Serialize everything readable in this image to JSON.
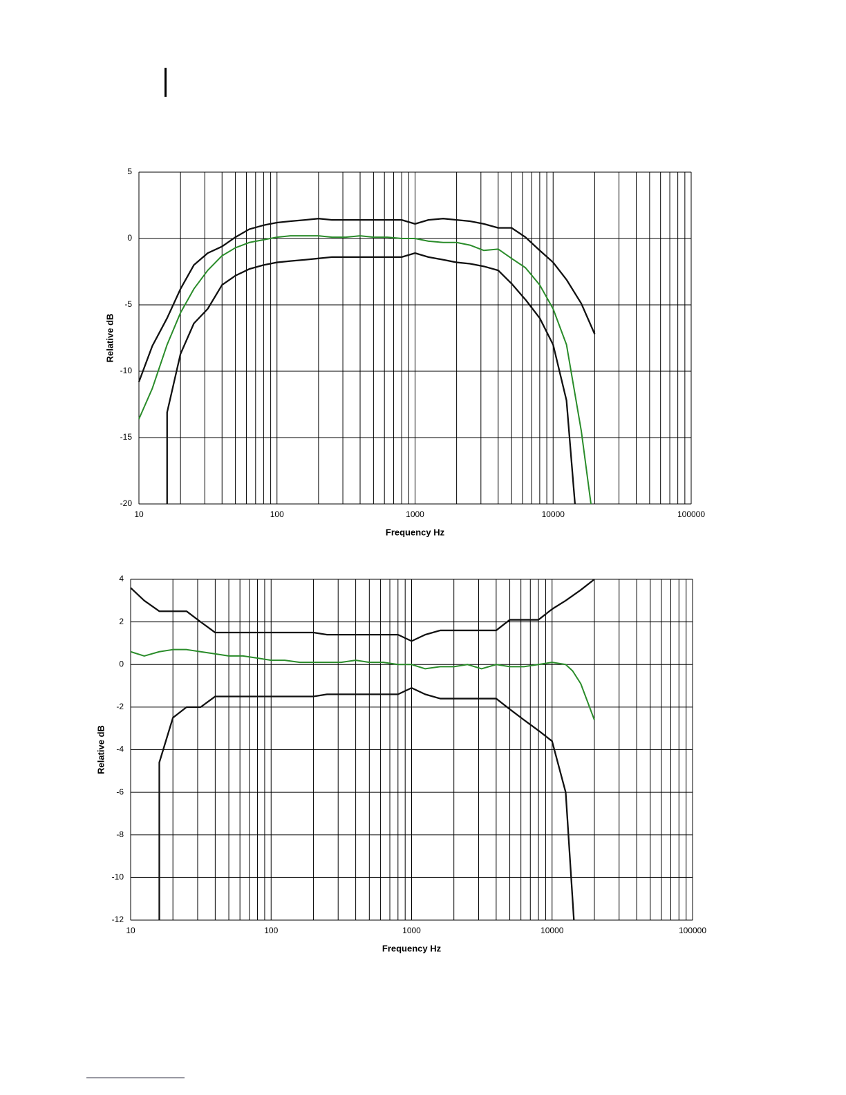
{
  "chart_data": [
    {
      "type": "line",
      "x_label": "Frequency Hz",
      "y_label": "Relative dB",
      "log_x": true,
      "grid": true,
      "xlim": [
        10,
        100000
      ],
      "xticks": [
        10,
        100,
        1000,
        10000,
        100000
      ],
      "x_minor_ticks": [
        20,
        30,
        40,
        50,
        60,
        70,
        80,
        90,
        200,
        300,
        400,
        500,
        600,
        700,
        800,
        900,
        2000,
        3000,
        4000,
        5000,
        6000,
        7000,
        8000,
        9000,
        20000,
        30000,
        40000,
        50000,
        60000,
        70000,
        80000,
        90000
      ],
      "ylim": [
        -20,
        5
      ],
      "yticks": [
        -20,
        -15,
        -10,
        -5,
        0,
        5
      ],
      "series": [
        {
          "color": "#111111",
          "x": [
            10,
            12.5,
            16,
            20,
            25,
            31.5,
            40,
            50,
            63,
            80,
            100,
            125,
            160,
            200,
            250,
            315,
            400,
            500,
            630,
            800,
            1000,
            1250,
            1600,
            2000,
            2500,
            3150,
            4000,
            5000,
            6300,
            8000,
            10000,
            12500,
            16000,
            20000
          ],
          "values": [
            -10.8,
            -8.1,
            -6,
            -3.8,
            -2,
            -1.1,
            -0.6,
            0.1,
            0.7,
            1,
            1.2,
            1.3,
            1.4,
            1.5,
            1.4,
            1.4,
            1.4,
            1.4,
            1.4,
            1.4,
            1.1,
            1.4,
            1.5,
            1.4,
            1.3,
            1.1,
            0.8,
            0.8,
            0.1,
            -0.9,
            -1.8,
            -3.1,
            -4.9,
            -7.2
          ]
        },
        {
          "color": "#111111",
          "x": [
            16,
            16,
            20,
            25,
            31.5,
            40,
            50,
            63,
            80,
            100,
            125,
            160,
            200,
            250,
            315,
            400,
            500,
            630,
            800,
            1000,
            1250,
            1600,
            2000,
            2500,
            3150,
            4000,
            5000,
            6300,
            8000,
            10000,
            12500,
            14400
          ],
          "values": [
            -20,
            -13.1,
            -8.7,
            -6.4,
            -5.3,
            -3.5,
            -2.8,
            -2.3,
            -2,
            -1.8,
            -1.7,
            -1.6,
            -1.5,
            -1.4,
            -1.4,
            -1.4,
            -1.4,
            -1.4,
            -1.4,
            -1.1,
            -1.4,
            -1.6,
            -1.8,
            -1.9,
            -2.1,
            -2.4,
            -3.4,
            -4.6,
            -6,
            -8,
            -12.2,
            -20
          ]
        },
        {
          "color": "#2a8c2a",
          "x": [
            10,
            12.5,
            16,
            20,
            25,
            31.5,
            40,
            50,
            63,
            80,
            100,
            125,
            160,
            200,
            250,
            315,
            400,
            500,
            630,
            800,
            1000,
            1250,
            1600,
            2000,
            2500,
            3150,
            4000,
            5000,
            6300,
            8000,
            10000,
            12500,
            16000,
            18800
          ],
          "values": [
            -13.6,
            -11.3,
            -8,
            -5.6,
            -3.8,
            -2.4,
            -1.3,
            -0.7,
            -0.3,
            -0.1,
            0.1,
            0.2,
            0.2,
            0.2,
            0.1,
            0.1,
            0.2,
            0.1,
            0.1,
            0,
            0,
            -0.2,
            -0.3,
            -0.3,
            -0.5,
            -0.9,
            -0.8,
            -1.5,
            -2.2,
            -3.5,
            -5.3,
            -8,
            -14.5,
            -20
          ]
        }
      ]
    },
    {
      "type": "line",
      "x_label": "Frequency Hz",
      "y_label": "Relative dB",
      "log_x": true,
      "grid": true,
      "xlim": [
        10,
        100000
      ],
      "xticks": [
        10,
        100,
        1000,
        10000,
        100000
      ],
      "x_minor_ticks": [
        20,
        30,
        40,
        50,
        60,
        70,
        80,
        90,
        200,
        300,
        400,
        500,
        600,
        700,
        800,
        900,
        2000,
        3000,
        4000,
        5000,
        6000,
        7000,
        8000,
        9000,
        20000,
        30000,
        40000,
        50000,
        60000,
        70000,
        80000,
        90000
      ],
      "ylim": [
        -12,
        4
      ],
      "yticks": [
        -12,
        -10,
        -8,
        -6,
        -4,
        -2,
        0,
        2,
        4
      ],
      "series": [
        {
          "color": "#111111",
          "x": [
            10,
            12.5,
            16,
            20,
            25,
            31.5,
            40,
            50,
            63,
            80,
            100,
            125,
            160,
            200,
            250,
            315,
            400,
            500,
            630,
            800,
            1000,
            1250,
            1600,
            2000,
            2500,
            3150,
            4000,
            5000,
            6300,
            8000,
            10000,
            12500,
            16000,
            20000
          ],
          "values": [
            3.6,
            3,
            2.5,
            2.5,
            2.5,
            2,
            1.5,
            1.5,
            1.5,
            1.5,
            1.5,
            1.5,
            1.5,
            1.5,
            1.4,
            1.4,
            1.4,
            1.4,
            1.4,
            1.4,
            1.1,
            1.4,
            1.6,
            1.6,
            1.6,
            1.6,
            1.6,
            2.1,
            2.1,
            2.1,
            2.6,
            3,
            3.5,
            4
          ]
        },
        {
          "color": "#111111",
          "x": [
            16,
            16,
            20,
            25,
            31.5,
            40,
            50,
            63,
            80,
            100,
            125,
            160,
            200,
            250,
            315,
            400,
            500,
            630,
            800,
            1000,
            1250,
            1600,
            2000,
            2500,
            3150,
            4000,
            5000,
            6300,
            8000,
            10000,
            12500,
            14300
          ],
          "values": [
            -12,
            -4.6,
            -2.5,
            -2,
            -2,
            -1.5,
            -1.5,
            -1.5,
            -1.5,
            -1.5,
            -1.5,
            -1.5,
            -1.5,
            -1.4,
            -1.4,
            -1.4,
            -1.4,
            -1.4,
            -1.4,
            -1.1,
            -1.4,
            -1.6,
            -1.6,
            -1.6,
            -1.6,
            -1.6,
            -2.1,
            -2.6,
            -3.1,
            -3.6,
            -6,
            -12
          ]
        },
        {
          "color": "#2a8c2a",
          "x": [
            10,
            12.5,
            16,
            20,
            25,
            31.5,
            40,
            50,
            63,
            80,
            100,
            125,
            160,
            200,
            250,
            315,
            400,
            500,
            630,
            800,
            1000,
            1250,
            1600,
            2000,
            2500,
            3150,
            4000,
            5000,
            6300,
            8000,
            10000,
            12500,
            14000,
            16000,
            20000
          ],
          "values": [
            0.6,
            0.4,
            0.6,
            0.7,
            0.7,
            0.6,
            0.5,
            0.4,
            0.4,
            0.3,
            0.2,
            0.2,
            0.1,
            0.1,
            0.1,
            0.1,
            0.2,
            0.1,
            0.1,
            0,
            0,
            -0.2,
            -0.1,
            -0.1,
            0,
            -0.2,
            0,
            -0.1,
            -0.1,
            0,
            0.1,
            0,
            -0.3,
            -0.9,
            -2.6
          ]
        }
      ]
    }
  ]
}
